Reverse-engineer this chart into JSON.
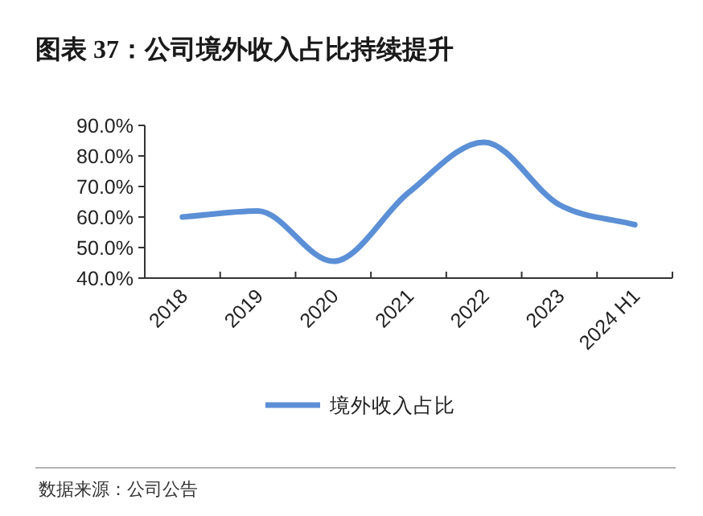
{
  "chart_data": {
    "type": "line",
    "title": "图表 37：公司境外收入占比持续提升",
    "categories": [
      "2018",
      "2019",
      "2020",
      "2021",
      "2022",
      "2023",
      "2024 H1"
    ],
    "series": [
      {
        "name": "境外收入占比",
        "color": "#5b8fd6",
        "values": [
          60.0,
          62.0,
          45.5,
          68.0,
          84.5,
          64.0,
          57.5
        ]
      }
    ],
    "ylim": [
      40,
      90
    ],
    "yticks": [
      {
        "value": 40,
        "label": "40.0%"
      },
      {
        "value": 50,
        "label": "50.0%"
      },
      {
        "value": 60,
        "label": "60.0%"
      },
      {
        "value": 70,
        "label": "70.0%"
      },
      {
        "value": 80,
        "label": "80.0%"
      },
      {
        "value": 90,
        "label": "90.0%"
      }
    ],
    "grid": false,
    "legend": "bottom",
    "marker": "none",
    "line_style": "solid",
    "annotations": [
      "数据来源：公司公告"
    ]
  }
}
